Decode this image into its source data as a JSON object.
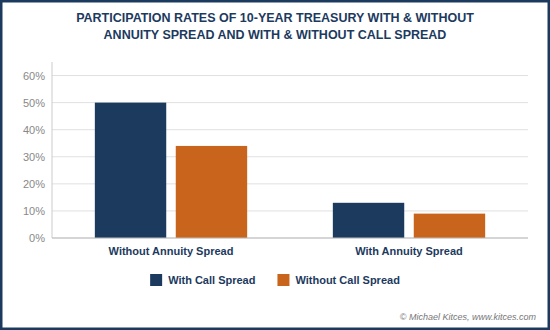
{
  "chart_data": {
    "type": "bar",
    "title": "PARTICIPATION RATES OF 10-YEAR TREASURY WITH & WITHOUT\nANNUITY SPREAD AND WITH & WITHOUT CALL SPREAD",
    "categories": [
      "Without Annuity Spread",
      "With Annuity Spread"
    ],
    "series": [
      {
        "name": "With Call Spread",
        "color": "#1c3a5e",
        "values": [
          0.5,
          0.13
        ]
      },
      {
        "name": "Without Call Spread",
        "color": "#c8641c",
        "values": [
          0.34,
          0.09
        ]
      }
    ],
    "ylim": [
      0,
      0.65
    ],
    "yticks": [
      {
        "value": 0.0,
        "label": "0%"
      },
      {
        "value": 0.1,
        "label": "10%"
      },
      {
        "value": 0.2,
        "label": "20%"
      },
      {
        "value": 0.3,
        "label": "30%"
      },
      {
        "value": 0.4,
        "label": "40%"
      },
      {
        "value": 0.5,
        "label": "50%"
      },
      {
        "value": 0.6,
        "label": "60%"
      }
    ],
    "grid": true,
    "legend": "bottom",
    "annotations": [
      "© Michael Kitces, www.kitces.com"
    ]
  }
}
